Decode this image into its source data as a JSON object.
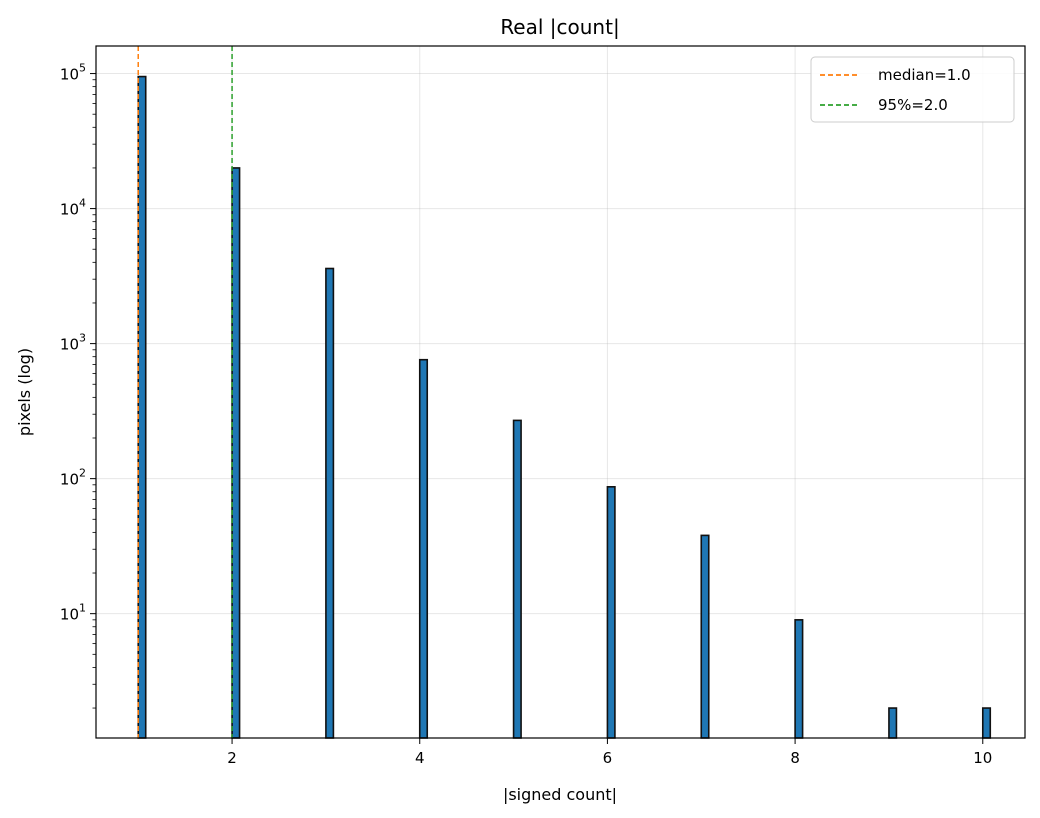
{
  "chart_data": {
    "type": "bar",
    "title": "Real |count|",
    "xlabel": "|signed count|",
    "ylabel": "pixels (log)",
    "xlim": [
      0.55,
      10.45
    ],
    "ylim": [
      1.2,
      160000
    ],
    "yscale": "log",
    "grid": true,
    "legend_position": "top-right",
    "bar_color": "#1f77b4",
    "x_ticks": [
      2,
      4,
      6,
      8,
      10
    ],
    "y_ticks": [
      {
        "value": 10,
        "base": "10",
        "exp": "1"
      },
      {
        "value": 100,
        "base": "10",
        "exp": "2"
      },
      {
        "value": 1000,
        "base": "10",
        "exp": "3"
      },
      {
        "value": 10000,
        "base": "10",
        "exp": "4"
      },
      {
        "value": 100000,
        "base": "10",
        "exp": "5"
      }
    ],
    "bars": [
      {
        "x": 1,
        "value": 95000
      },
      {
        "x": 2,
        "value": 20000
      },
      {
        "x": 3,
        "value": 3600
      },
      {
        "x": 4,
        "value": 760
      },
      {
        "x": 5,
        "value": 270
      },
      {
        "x": 6,
        "value": 87
      },
      {
        "x": 7,
        "value": 38
      },
      {
        "x": 8,
        "value": 9
      },
      {
        "x": 9,
        "value": 2
      },
      {
        "x": 10,
        "value": 2
      }
    ],
    "reference_lines": [
      {
        "name": "median=1.0",
        "x": 1.0,
        "color": "#ff7f0e"
      },
      {
        "name": "95%=2.0",
        "x": 2.0,
        "color": "#2ca02c"
      }
    ]
  }
}
